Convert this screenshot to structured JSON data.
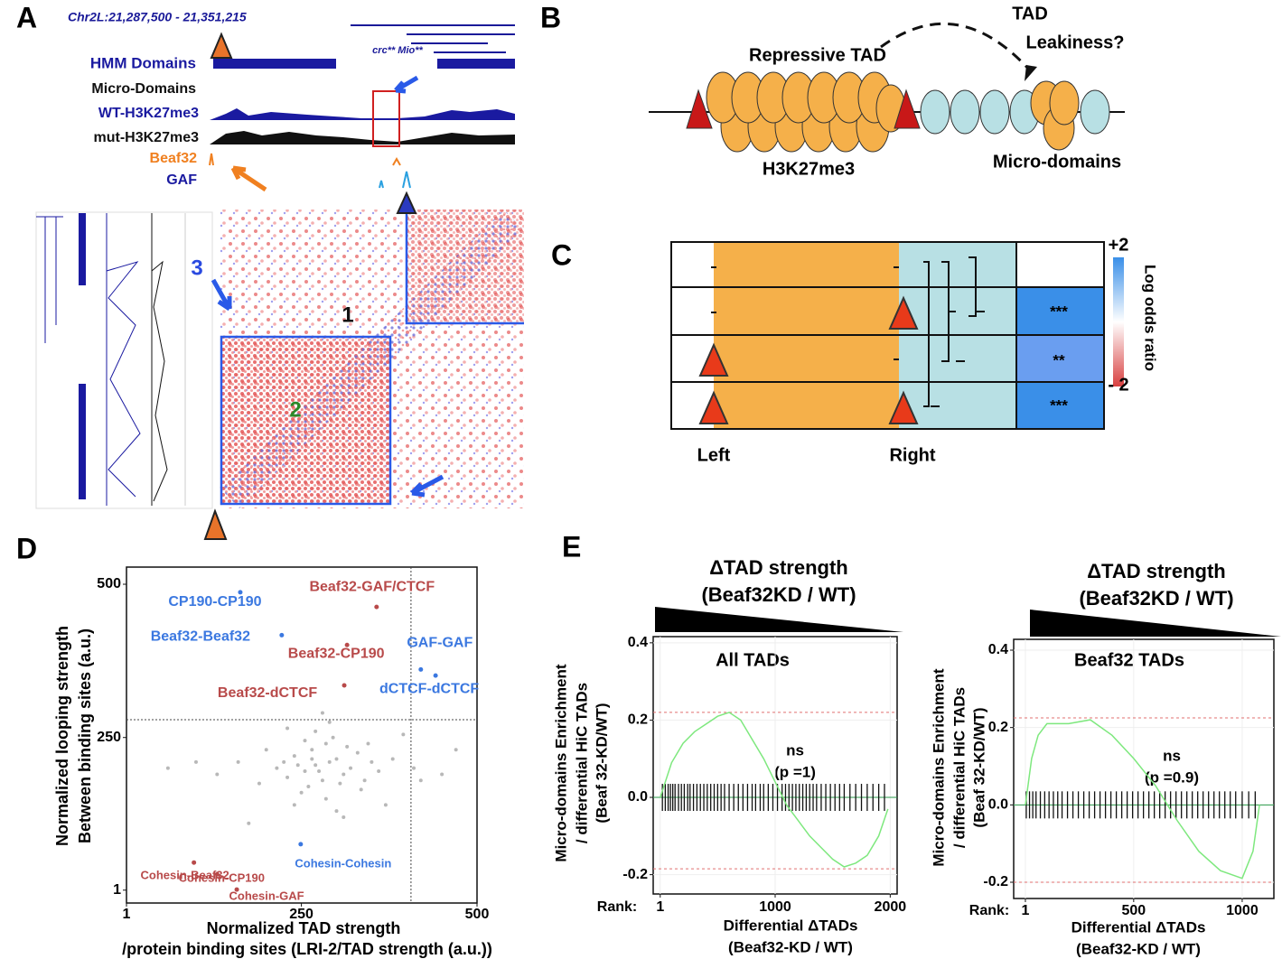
{
  "panel_a": {
    "letter": "A",
    "locus": "Chr2L:21,287,500 - 21,351,215",
    "genes": "crc** Mio**",
    "tracks": [
      "HMM Domains",
      "Micro-Domains",
      "WT-H3K27me3",
      "mut-H3K27me3",
      "Beaf32",
      "GAF"
    ],
    "domains": [
      "1",
      "2",
      "3"
    ]
  },
  "panel_b": {
    "letter": "B",
    "tad": "TAD",
    "leakiness": "Leakiness?",
    "repressive": "Repressive TAD",
    "mark": "H3K27me3",
    "micro": "Micro-domains"
  },
  "panel_c": {
    "letter": "C",
    "significance": [
      "***",
      "**",
      "***"
    ],
    "left": "Left",
    "right": "Right",
    "scale_max": "+2",
    "scale_min": "- 2",
    "scale_title": "Log odds ratio"
  },
  "panel_d": {
    "letter": "D"
  },
  "panel_e": {
    "letter": "E"
  },
  "chart_data": [
    {
      "type": "scatter",
      "x_label": [
        "Normalized TAD strength",
        "/protein binding sites (LRI-2/TAD strength (a.u.))"
      ],
      "y_label": [
        "Normalized looping strength",
        "Between binding sites  (a.u.)"
      ],
      "xlim": [
        1,
        500
      ],
      "ylim": [
        -20,
        528
      ],
      "xticks": [
        1,
        250,
        500
      ],
      "yticks": [
        1,
        250,
        500
      ],
      "reference_lines": {
        "x": 406,
        "y": 279
      },
      "series": [
        {
          "name": "CP190-CP190",
          "color": "#3b78e0",
          "x": [
            163
          ],
          "values": [
            487
          ]
        },
        {
          "name": "Beaf32-GAF/CTCF",
          "color": "#b84a4a",
          "x": [
            357
          ],
          "values": [
            463
          ]
        },
        {
          "name": "Beaf32-Beaf32",
          "color": "#3b78e0",
          "x": [
            222
          ],
          "values": [
            417
          ]
        },
        {
          "name": "Beaf32-CP190",
          "color": "#b84a4a",
          "x": [
            315
          ],
          "values": [
            401
          ]
        },
        {
          "name": "GAF-GAF",
          "color": "#3b78e0",
          "x": [
            420
          ],
          "values": [
            361
          ]
        },
        {
          "name": "dCTCF-dCTCF",
          "color": "#3b78e0",
          "x": [
            441
          ],
          "values": [
            351
          ]
        },
        {
          "name": "Beaf32-dCTCF",
          "color": "#b84a4a",
          "x": [
            311
          ],
          "values": [
            335
          ]
        },
        {
          "name": "Cohesin-Cohesin",
          "color": "#3b78e0",
          "x": [
            249
          ],
          "values": [
            76
          ]
        },
        {
          "name": "Cohesin-Beaf32",
          "color": "#b84a4a",
          "x": [
            97
          ],
          "values": [
            46
          ]
        },
        {
          "name": "Cohesin-CP190",
          "color": "#b84a4a",
          "x": [
            130
          ],
          "values": [
            27
          ]
        },
        {
          "name": "Cohesin-GAF",
          "color": "#b84a4a",
          "x": [
            158
          ],
          "values": [
            2
          ]
        },
        {
          "color": "#b8b8b8",
          "x": [
            270,
            255,
            290,
            310,
            240,
            300,
            280,
            265,
            320,
            230,
            350,
            215,
            285,
            260,
            330,
            295,
            245,
            305,
            275,
            340,
            200,
            360,
            250,
            315,
            225,
            380,
            190,
            270,
            335,
            285,
            410,
            160,
            300,
            255,
            420,
            130,
            290,
            240,
            345,
            265,
            100,
            310,
            280,
            450,
            230,
            370,
            470,
            60,
            395,
            175
          ],
          "values": [
            205,
            195,
            210,
            190,
            220,
            215,
            180,
            230,
            200,
            185,
            210,
            200,
            240,
            170,
            225,
            250,
            205,
            175,
            195,
            180,
            230,
            195,
            160,
            235,
            210,
            215,
            175,
            260,
            165,
            150,
            200,
            210,
            130,
            245,
            180,
            190,
            275,
            140,
            240,
            215,
            210,
            120,
            290,
            190,
            265,
            140,
            230,
            200,
            255,
            110
          ]
        }
      ]
    },
    {
      "type": "line",
      "header": [
        "ΔTAD strength",
        "(Beaf32KD / WT)"
      ],
      "title": "All TADs",
      "annotation": [
        "ns",
        "(p =1)"
      ],
      "y_label": [
        "Micro-domains Enrichment",
        "/ differential HiC TADs",
        "(Beaf 32-KD/WT)"
      ],
      "x_label": [
        "Differential ΔTADs",
        "(Beaf32-KD / WT)"
      ],
      "x_prefix": "Rank:",
      "xlim": [
        -60,
        2060
      ],
      "ylim": [
        -0.25,
        0.416
      ],
      "xticks": [
        1,
        1000,
        2000
      ],
      "yticks": [
        -0.2,
        {
          "value": 0,
          "label": "0.0"
        },
        0.2,
        0.4
      ],
      "x": [
        1,
        100,
        200,
        300,
        400,
        500,
        600,
        700,
        800,
        900,
        1000,
        1100,
        1200,
        1300,
        1400,
        1500,
        1600,
        1700,
        1800,
        1900,
        1980
      ],
      "series": [
        {
          "color": "#7ee87e",
          "values": [
            0,
            0.09,
            0.14,
            0.17,
            0.19,
            0.21,
            0.22,
            0.2,
            0.15,
            0.1,
            0.04,
            -0.02,
            -0.06,
            -0.1,
            -0.13,
            -0.16,
            -0.18,
            -0.17,
            -0.15,
            -0.1,
            -0.03
          ]
        }
      ],
      "reference_lines": [
        0.22,
        -0.185
      ],
      "rug": [
        20,
        45,
        70,
        90,
        110,
        130,
        160,
        185,
        210,
        240,
        260,
        290,
        320,
        350,
        380,
        410,
        440,
        470,
        500,
        530,
        560,
        600,
        640,
        680,
        720,
        760,
        800,
        830,
        870,
        900,
        940,
        980,
        1020,
        1060,
        1090,
        1120,
        1150,
        1180,
        1210,
        1240,
        1270,
        1300,
        1330,
        1360,
        1400,
        1440,
        1480,
        1520,
        1560,
        1600,
        1650,
        1700,
        1750,
        1800,
        1850,
        1900,
        1950
      ]
    },
    {
      "type": "line",
      "header": [
        "ΔTAD strength",
        "(Beaf32KD / WT)"
      ],
      "title": "Beaf32 TADs",
      "annotation": [
        "ns",
        "(p =0.9)"
      ],
      "y_label": [
        "Micro-domains Enrichment",
        "/ differential HiC TADs",
        "(Beaf 32-KD/WT)"
      ],
      "x_label": [
        "Differential ΔTADs",
        "(Beaf32-KD / WT)"
      ],
      "x_prefix": "Rank:",
      "xlim": [
        -53,
        1146
      ],
      "ylim": [
        -0.242,
        0.428
      ],
      "xticks": [
        1,
        500,
        1000
      ],
      "yticks": [
        -0.2,
        {
          "value": 0,
          "label": "0.0"
        },
        0.2,
        0.4
      ],
      "x": [
        1,
        30,
        60,
        100,
        200,
        300,
        400,
        500,
        600,
        700,
        800,
        900,
        1000,
        1050,
        1080
      ],
      "series": [
        {
          "color": "#7ee87e",
          "values": [
            0,
            0.12,
            0.18,
            0.21,
            0.21,
            0.22,
            0.18,
            0.12,
            0.05,
            -0.04,
            -0.12,
            -0.17,
            -0.19,
            -0.12,
            0
          ]
        }
      ],
      "reference_lines": [
        0.225,
        -0.2
      ],
      "rug": [
        5,
        20,
        35,
        50,
        70,
        90,
        110,
        130,
        150,
        170,
        195,
        220,
        245,
        270,
        295,
        320,
        345,
        370,
        395,
        420,
        445,
        470,
        495,
        520,
        545,
        570,
        595,
        620,
        645,
        670,
        695,
        720,
        745,
        770,
        795,
        820,
        845,
        870,
        895,
        920,
        945,
        970,
        1000,
        1030,
        1060
      ]
    }
  ]
}
